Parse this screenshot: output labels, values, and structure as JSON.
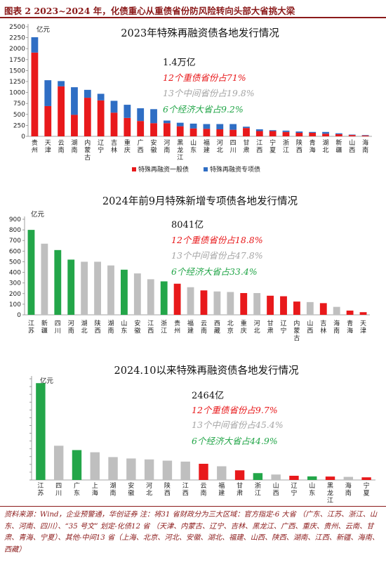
{
  "header": {
    "title": "图表 2   2023~2024 年，化债重心从重债省份防风险转向头部大省挑大梁"
  },
  "footer": {
    "text": "资料来源：Wind，企业预警通，华创证券      注：将31 省财政分为三大区域：官方指定-6 大省 （广东、江苏、浙江、山东、河南、四川）、“35 号文” 划定-化债12 省 （天津、内蒙古、辽宁、吉林、黑龙江、广西、重庆、贵州、云南、甘肃、青海、宁夏）、其他-中间13 省（上海、北京、河北、安徽、湖北、福建、山西、陕西、湖南、江西、新疆、海南、西藏）"
  },
  "colors": {
    "red": "#e8191b",
    "blue": "#2f6ec4",
    "green": "#23a649",
    "gray": "#bfbfbf",
    "gray_text": "#a6a6a6",
    "green_text": "#23a649",
    "red_text": "#e8191b"
  },
  "chart_data": [
    {
      "type": "bar",
      "stacked": true,
      "title": "2023年特殊再融资债各地发行情况",
      "unit_label": "亿元",
      "ylim": [
        0,
        2500
      ],
      "yticks": [
        0,
        250,
        500,
        750,
        1000,
        1250,
        1500,
        1750,
        2000,
        2250,
        2500
      ],
      "categories": [
        "贵州",
        "天津",
        "云南",
        "湖南",
        "内蒙古",
        "辽宁",
        "吉林",
        "重庆",
        "广西",
        "安徽",
        "河南",
        "黑龙江",
        "山东",
        "福建",
        "河北",
        "四川",
        "甘肃",
        "江西",
        "宁夏",
        "浙江",
        "陕西",
        "青海",
        "湖北",
        "新疆",
        "山西",
        "海南"
      ],
      "series": [
        {
          "name": "特殊再融资一般债",
          "color": "#e8191b",
          "values": [
            1910,
            690,
            1140,
            490,
            880,
            820,
            540,
            420,
            350,
            300,
            300,
            230,
            180,
            170,
            160,
            150,
            190,
            120,
            120,
            100,
            80,
            80,
            60,
            50,
            30,
            20
          ]
        },
        {
          "name": "特殊再融资专项债",
          "color": "#2f6ec4",
          "values": [
            350,
            590,
            120,
            630,
            180,
            150,
            270,
            300,
            290,
            320,
            60,
            80,
            110,
            110,
            120,
            130,
            30,
            40,
            20,
            30,
            30,
            20,
            40,
            20,
            10,
            10
          ]
        }
      ],
      "legend_position": "bottom",
      "annotations": [
        {
          "text": "1.4万亿",
          "style": "dark"
        },
        {
          "text": "12个重债省份占71%",
          "style": "red"
        },
        {
          "text": "13个中间省份占19.8%",
          "style": "gray"
        },
        {
          "text": "6个经济大省占9.2%",
          "style": "green"
        }
      ]
    },
    {
      "type": "bar",
      "title": "2024年前9月特殊新增专项债各地发行情况",
      "unit_label": "亿元",
      "ylim": [
        0,
        900
      ],
      "yticks": [
        0,
        100,
        200,
        300,
        400,
        500,
        600,
        700,
        800,
        900
      ],
      "categories": [
        "江苏",
        "新疆",
        "四川",
        "河南",
        "湖北",
        "陕西",
        "湖南",
        "山东",
        "安徽",
        "江西",
        "浙江",
        "贵州",
        "福建",
        "云南",
        "西藏",
        "北京",
        "重庆",
        "河北",
        "甘肃",
        "辽宁",
        "内蒙古",
        "山西",
        "吉林",
        "海南",
        "青海",
        "天津"
      ],
      "values": [
        800,
        670,
        610,
        520,
        500,
        500,
        465,
        425,
        390,
        335,
        315,
        293,
        260,
        230,
        220,
        215,
        205,
        205,
        180,
        175,
        125,
        120,
        110,
        75,
        40,
        25
      ],
      "bar_colors": [
        "green",
        "gray",
        "green",
        "green",
        "gray",
        "gray",
        "gray",
        "green",
        "gray",
        "gray",
        "green",
        "red",
        "gray",
        "red",
        "gray",
        "gray",
        "red",
        "gray",
        "red",
        "red",
        "red",
        "gray",
        "red",
        "gray",
        "red",
        "red"
      ],
      "annotations": [
        {
          "text": "8041亿",
          "style": "dark"
        },
        {
          "text": "12个重债省份占18.8%",
          "style": "red"
        },
        {
          "text": "13个中间省份占47.8%",
          "style": "gray"
        },
        {
          "text": "6个经济大省占33.4%",
          "style": "green"
        }
      ]
    },
    {
      "type": "bar",
      "title": "2024.10以来特殊再融资债各地发行情况",
      "unit_label": "亿元",
      "ylim": [
        0,
        650
      ],
      "yticks": [],
      "categories": [
        "江苏",
        "四川",
        "广东",
        "上海",
        "湖南",
        "安徽",
        "河北",
        "陕西",
        "江西",
        "云南",
        "福建",
        "甘肃",
        "浙江",
        "山西",
        "辽宁",
        "山东",
        "黑龙江",
        "海南",
        "宁夏"
      ],
      "values": [
        622,
        220,
        192,
        178,
        147,
        138,
        132,
        124,
        118,
        104,
        88,
        62,
        44,
        35,
        27,
        23,
        22,
        20,
        17
      ],
      "bar_colors": [
        "green",
        "gray",
        "green",
        "gray",
        "gray",
        "gray",
        "gray",
        "gray",
        "gray",
        "red",
        "gray",
        "red",
        "green",
        "gray",
        "red",
        "green",
        "red",
        "gray",
        "red"
      ],
      "annotations": [
        {
          "text": "2464亿",
          "style": "dark"
        },
        {
          "text": "12个重债省份占9.7%",
          "style": "red"
        },
        {
          "text": "13个中间省份占45.4%",
          "style": "gray"
        },
        {
          "text": "6个经济大省占44.9%",
          "style": "green"
        }
      ]
    }
  ]
}
